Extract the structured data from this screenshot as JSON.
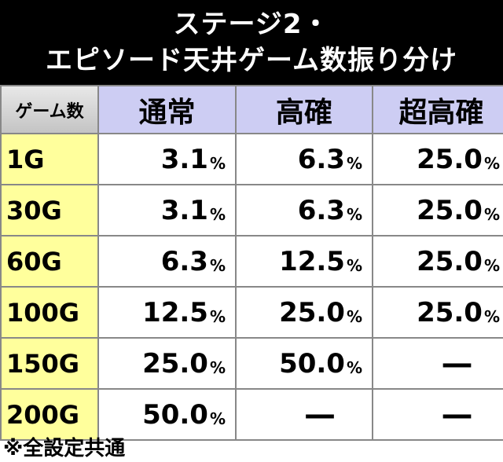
{
  "header": {
    "title_lines": [
      "ステージ2・",
      "エピソード天井ゲーム数振り分け"
    ]
  },
  "table": {
    "columns": [
      "ゲーム数",
      "通常",
      "高確",
      "超高確"
    ],
    "rows": [
      [
        "1G",
        {
          "number": "3.1",
          "unit": "%"
        },
        {
          "number": "6.3",
          "unit": "%"
        },
        {
          "number": "25.0",
          "unit": "%"
        }
      ],
      [
        "30G",
        {
          "number": "3.1",
          "unit": "%"
        },
        {
          "number": "6.3",
          "unit": "%"
        },
        {
          "number": "25.0",
          "unit": "%"
        }
      ],
      [
        "60G",
        {
          "number": "6.3",
          "unit": "%"
        },
        {
          "number": "12.5",
          "unit": "%"
        },
        {
          "number": "25.0",
          "unit": "%"
        }
      ],
      [
        "100G",
        {
          "number": "12.5",
          "unit": "%"
        },
        {
          "number": "25.0",
          "unit": "%"
        },
        {
          "number": "25.0",
          "unit": "%"
        }
      ],
      [
        "150G",
        {
          "number": "25.0",
          "unit": "%"
        },
        {
          "number": "50.0",
          "unit": "%"
        },
        "—"
      ],
      [
        "200G",
        {
          "number": "50.0",
          "unit": "%"
        },
        "—",
        "—"
      ]
    ]
  },
  "footnote": "※全設定共通"
}
